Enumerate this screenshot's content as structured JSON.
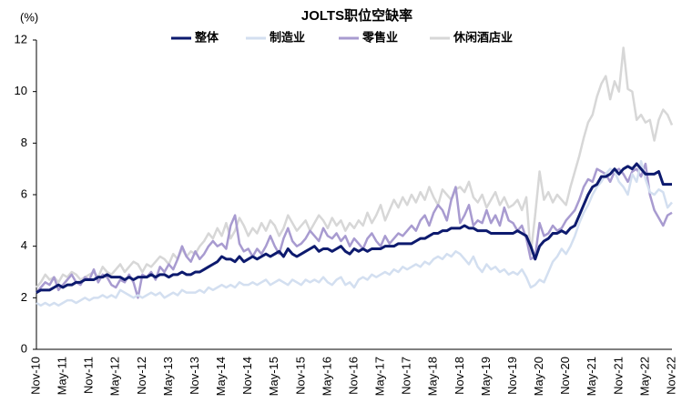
{
  "chart_data": {
    "type": "line",
    "title": "JOLTS职位空缺率",
    "y_label": "(%)",
    "categories": [
      "Nov-10",
      null,
      null,
      null,
      null,
      null,
      "May-11",
      null,
      null,
      null,
      null,
      null,
      "Nov-11",
      null,
      null,
      null,
      null,
      null,
      "May-12",
      null,
      null,
      null,
      null,
      null,
      "Nov-12",
      null,
      null,
      null,
      null,
      null,
      "May-13",
      null,
      null,
      null,
      null,
      null,
      "Nov-13",
      null,
      null,
      null,
      null,
      null,
      "May-14",
      null,
      null,
      null,
      null,
      null,
      "Nov-14",
      null,
      null,
      null,
      null,
      null,
      "May-15",
      null,
      null,
      null,
      null,
      null,
      "Nov-15",
      null,
      null,
      null,
      null,
      null,
      "May-16",
      null,
      null,
      null,
      null,
      null,
      "Nov-16",
      null,
      null,
      null,
      null,
      null,
      "May-17",
      null,
      null,
      null,
      null,
      null,
      "Nov-17",
      null,
      null,
      null,
      null,
      null,
      "May-18",
      null,
      null,
      null,
      null,
      null,
      "Nov-18",
      null,
      null,
      null,
      null,
      null,
      "May-19",
      null,
      null,
      null,
      null,
      null,
      "Nov-19",
      null,
      null,
      null,
      null,
      null,
      "May-20",
      null,
      null,
      null,
      null,
      null,
      "Nov-20",
      null,
      null,
      null,
      null,
      null,
      "May-21",
      null,
      null,
      null,
      null,
      null,
      "Nov-21",
      null,
      null,
      null,
      null,
      null,
      "May-22",
      null,
      null,
      null,
      null,
      null,
      "Nov-22"
    ],
    "series": [
      {
        "name": "整体",
        "color": "#0d1a6e",
        "values": [
          2.2,
          2.3,
          2.3,
          2.3,
          2.4,
          2.5,
          2.4,
          2.5,
          2.5,
          2.6,
          2.6,
          2.7,
          2.7,
          2.7,
          2.8,
          2.8,
          2.9,
          2.8,
          2.8,
          2.8,
          2.7,
          2.8,
          2.7,
          2.8,
          2.8,
          2.8,
          2.9,
          2.8,
          2.9,
          2.9,
          2.8,
          2.9,
          2.9,
          3.0,
          2.9,
          2.9,
          3.0,
          3.0,
          3.1,
          3.2,
          3.3,
          3.4,
          3.6,
          3.5,
          3.5,
          3.4,
          3.6,
          3.4,
          3.5,
          3.6,
          3.5,
          3.6,
          3.7,
          3.6,
          3.7,
          3.8,
          3.6,
          3.9,
          3.7,
          3.6,
          3.7,
          3.8,
          3.9,
          4.0,
          3.8,
          3.9,
          3.9,
          3.8,
          3.9,
          4.0,
          3.8,
          3.7,
          3.9,
          3.8,
          3.9,
          3.8,
          3.9,
          3.9,
          3.9,
          4.0,
          4.0,
          4.0,
          4.1,
          4.1,
          4.1,
          4.1,
          4.2,
          4.3,
          4.3,
          4.4,
          4.5,
          4.5,
          4.6,
          4.6,
          4.7,
          4.7,
          4.7,
          4.8,
          4.7,
          4.7,
          4.6,
          4.6,
          4.6,
          4.5,
          4.5,
          4.5,
          4.5,
          4.5,
          4.5,
          4.6,
          4.5,
          4.4,
          4.0,
          3.5,
          4.0,
          4.2,
          4.3,
          4.5,
          4.5,
          4.6,
          4.5,
          4.7,
          4.8,
          5.2,
          5.6,
          6.0,
          6.3,
          6.4,
          6.7,
          6.7,
          6.8,
          7.0,
          6.8,
          7.0,
          7.1,
          7.0,
          7.2,
          7.0,
          6.8,
          6.8,
          6.8,
          6.9,
          6.4,
          6.4,
          6.4
        ]
      },
      {
        "name": "制造业",
        "color": "#d3dff0",
        "values": [
          1.8,
          1.7,
          1.8,
          1.7,
          1.8,
          1.7,
          1.8,
          1.9,
          1.9,
          1.8,
          1.9,
          2.0,
          1.9,
          2.0,
          2.0,
          2.1,
          2.0,
          2.1,
          2.0,
          2.3,
          2.2,
          2.1,
          2.0,
          2.1,
          2.0,
          2.1,
          2.2,
          2.1,
          2.2,
          2.0,
          2.1,
          2.2,
          2.1,
          2.3,
          2.2,
          2.2,
          2.2,
          2.3,
          2.2,
          2.4,
          2.3,
          2.4,
          2.5,
          2.4,
          2.5,
          2.4,
          2.6,
          2.5,
          2.5,
          2.6,
          2.5,
          2.6,
          2.7,
          2.5,
          2.6,
          2.7,
          2.6,
          2.5,
          2.7,
          2.6,
          2.5,
          2.7,
          2.6,
          2.7,
          2.6,
          2.8,
          2.6,
          2.5,
          2.7,
          2.8,
          2.5,
          2.6,
          2.4,
          2.7,
          2.8,
          2.7,
          2.9,
          2.8,
          2.9,
          3.0,
          2.9,
          3.1,
          3.0,
          3.2,
          3.1,
          3.2,
          3.3,
          3.2,
          3.4,
          3.3,
          3.5,
          3.6,
          3.5,
          3.7,
          3.6,
          3.8,
          3.7,
          3.5,
          3.3,
          3.6,
          3.2,
          3.0,
          3.3,
          3.1,
          3.2,
          3.0,
          3.1,
          2.9,
          3.0,
          2.9,
          3.1,
          2.8,
          2.4,
          2.5,
          2.7,
          2.6,
          3.0,
          3.4,
          3.6,
          3.9,
          3.7,
          4.0,
          4.4,
          4.9,
          5.3,
          5.6,
          6.0,
          6.3,
          6.5,
          6.8,
          7.0,
          6.9,
          6.5,
          6.3,
          6.0,
          6.8,
          6.5,
          7.3,
          6.6,
          6.1,
          6.0,
          6.2,
          6.1,
          5.5,
          5.7
        ]
      },
      {
        "name": "零售业",
        "color": "#a89bd0",
        "values": [
          2.2,
          2.4,
          2.6,
          2.5,
          2.8,
          2.3,
          2.5,
          2.7,
          2.9,
          2.6,
          2.5,
          2.8,
          2.7,
          3.1,
          2.6,
          2.9,
          2.8,
          2.5,
          2.4,
          2.7,
          2.6,
          2.9,
          2.6,
          2.0,
          2.9,
          2.8,
          3.0,
          2.7,
          3.2,
          3.0,
          3.3,
          3.1,
          3.5,
          4.0,
          3.6,
          3.4,
          3.8,
          3.5,
          3.7,
          4.0,
          4.2,
          4.0,
          4.1,
          3.9,
          4.8,
          5.2,
          4.1,
          3.8,
          3.9,
          3.6,
          3.9,
          3.7,
          4.0,
          4.4,
          4.0,
          3.7,
          4.3,
          4.7,
          4.2,
          4.0,
          4.1,
          4.3,
          4.6,
          4.4,
          4.2,
          4.7,
          4.4,
          4.3,
          4.5,
          4.2,
          4.4,
          4.0,
          4.3,
          4.1,
          3.9,
          4.3,
          4.5,
          4.2,
          4.0,
          4.4,
          4.1,
          4.3,
          4.5,
          4.4,
          4.6,
          4.8,
          4.6,
          5.0,
          5.2,
          4.8,
          5.3,
          5.6,
          5.4,
          5.0,
          5.8,
          6.3,
          4.9,
          5.2,
          5.6,
          4.8,
          5.0,
          4.9,
          5.4,
          4.9,
          5.2,
          4.8,
          5.5,
          5.0,
          4.9,
          4.6,
          4.8,
          4.3,
          3.5,
          3.6,
          4.9,
          4.4,
          4.5,
          4.8,
          4.6,
          4.7,
          5.0,
          5.2,
          5.4,
          5.8,
          6.3,
          6.6,
          6.5,
          7.0,
          6.9,
          6.8,
          6.5,
          6.9,
          7.0,
          6.8,
          6.5,
          6.9,
          7.0,
          6.7,
          7.2,
          6.0,
          5.4,
          5.1,
          4.8,
          5.2,
          5.3
        ]
      },
      {
        "name": "休闲酒店业",
        "color": "#d7d7d7",
        "values": [
          2.4,
          2.6,
          2.9,
          2.7,
          2.8,
          2.6,
          2.9,
          2.8,
          3.0,
          2.9,
          2.7,
          2.8,
          2.9,
          3.0,
          2.8,
          3.2,
          3.0,
          2.9,
          3.1,
          3.3,
          3.0,
          3.2,
          3.4,
          3.3,
          3.0,
          3.3,
          3.2,
          3.4,
          3.6,
          3.5,
          3.3,
          3.7,
          3.5,
          3.9,
          3.6,
          3.8,
          3.7,
          4.0,
          4.2,
          4.5,
          4.3,
          4.7,
          4.4,
          4.9,
          4.3,
          4.6,
          5.1,
          4.8,
          4.4,
          4.7,
          4.5,
          4.9,
          4.6,
          5.0,
          4.8,
          4.4,
          4.7,
          5.2,
          4.9,
          4.6,
          4.8,
          5.0,
          4.6,
          4.9,
          5.2,
          5.0,
          4.7,
          5.1,
          4.8,
          5.0,
          4.6,
          4.9,
          4.7,
          5.0,
          4.8,
          5.3,
          4.9,
          5.2,
          5.6,
          5.0,
          5.4,
          5.8,
          5.5,
          5.9,
          5.6,
          6.0,
          5.7,
          6.1,
          5.8,
          6.3,
          5.9,
          5.6,
          6.2,
          6.0,
          5.8,
          6.2,
          6.3,
          6.1,
          6.5,
          5.9,
          5.7,
          6.0,
          5.5,
          5.8,
          6.1,
          5.6,
          5.9,
          5.5,
          5.6,
          5.8,
          5.4,
          5.9,
          3.7,
          5.2,
          6.9,
          5.8,
          6.1,
          5.7,
          6.0,
          5.8,
          5.6,
          6.3,
          6.9,
          7.5,
          8.2,
          8.8,
          9.1,
          9.8,
          10.3,
          10.6,
          9.7,
          10.4,
          10.0,
          11.7,
          10.1,
          10.0,
          8.9,
          9.1,
          8.8,
          8.9,
          8.1,
          8.9,
          9.3,
          9.1,
          8.7
        ]
      }
    ],
    "ylim": [
      0,
      12
    ],
    "yticks": [
      0,
      2,
      4,
      6,
      8,
      10,
      12
    ],
    "grid": false,
    "legend": "top"
  }
}
